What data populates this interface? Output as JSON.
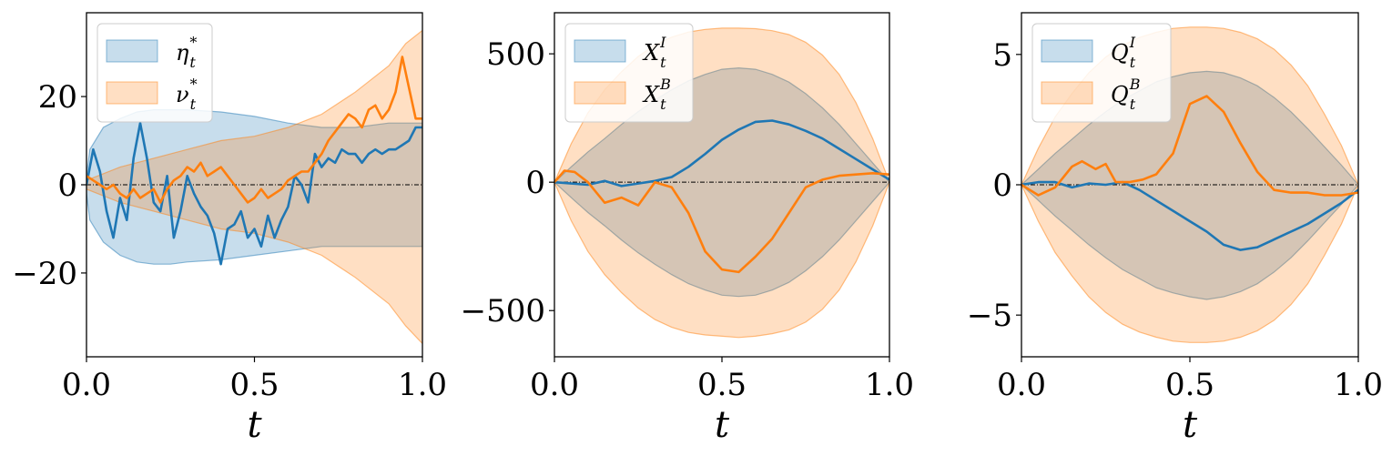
{
  "chart_data": [
    {
      "type": "area",
      "xlabel": "t",
      "ylabel": "",
      "xlim": [
        0.0,
        1.0
      ],
      "ylim": [
        -39,
        39
      ],
      "xticks": [
        "0.0",
        "0.5",
        "1.0"
      ],
      "yticks": [
        {
          "value": 20,
          "label": "20"
        },
        {
          "value": 0,
          "label": "0"
        },
        {
          "value": -20,
          "label": "−20"
        }
      ],
      "legend": "top-left",
      "zero_line": true,
      "bands": [
        {
          "name": "η",
          "sup": "*",
          "color": "#1f77b4",
          "x": [
            0.0,
            0.01,
            0.05,
            0.1,
            0.15,
            0.2,
            0.25,
            0.3,
            0.4,
            0.5,
            0.6,
            0.7,
            0.8,
            0.9,
            1.0
          ],
          "upper": [
            2,
            8,
            13,
            15,
            16.5,
            17,
            17,
            17,
            16.5,
            15.5,
            14,
            13,
            13,
            14,
            14
          ],
          "lower": [
            -2,
            -8,
            -13,
            -16,
            -17.5,
            -18,
            -18,
            -17.5,
            -17,
            -16,
            -15,
            -14,
            -14,
            -14,
            -14
          ]
        },
        {
          "name": "ν",
          "sup": "*",
          "color": "#ff7f0e",
          "x": [
            0.0,
            0.1,
            0.2,
            0.3,
            0.4,
            0.5,
            0.6,
            0.7,
            0.8,
            0.9,
            0.95,
            1.0
          ],
          "upper": [
            1,
            4,
            6,
            8,
            10,
            11,
            13,
            16,
            21,
            27,
            32,
            35
          ],
          "lower": [
            -1,
            -4,
            -6,
            -8,
            -10,
            -11,
            -13,
            -16,
            -21,
            -27,
            -32,
            -36
          ]
        }
      ],
      "series": [
        {
          "color": "#1f77b4",
          "x": [
            0.0,
            0.02,
            0.04,
            0.06,
            0.08,
            0.1,
            0.12,
            0.14,
            0.16,
            0.18,
            0.2,
            0.22,
            0.24,
            0.26,
            0.28,
            0.3,
            0.32,
            0.34,
            0.36,
            0.38,
            0.4,
            0.42,
            0.44,
            0.46,
            0.48,
            0.5,
            0.52,
            0.54,
            0.56,
            0.58,
            0.6,
            0.62,
            0.64,
            0.66,
            0.68,
            0.7,
            0.72,
            0.74,
            0.76,
            0.78,
            0.8,
            0.82,
            0.84,
            0.86,
            0.88,
            0.9,
            0.92,
            0.94,
            0.96,
            0.98,
            1.0
          ],
          "y": [
            0,
            8,
            3,
            -6,
            -12,
            -3,
            -8,
            6,
            14,
            6,
            -4,
            -6,
            2,
            -12,
            -6,
            2,
            -2,
            -5,
            -7,
            -11,
            -18,
            -10,
            -9,
            -6,
            -12,
            -10,
            -14,
            -7,
            -12,
            -8,
            -5,
            2,
            0,
            -4,
            7,
            4,
            6,
            5,
            8,
            7,
            7,
            5,
            7,
            8,
            7,
            8,
            8,
            9,
            10,
            13,
            13
          ]
        },
        {
          "color": "#ff7f0e",
          "x": [
            0.0,
            0.02,
            0.04,
            0.06,
            0.08,
            0.1,
            0.12,
            0.14,
            0.16,
            0.18,
            0.2,
            0.22,
            0.24,
            0.26,
            0.28,
            0.3,
            0.32,
            0.34,
            0.36,
            0.38,
            0.4,
            0.42,
            0.44,
            0.46,
            0.48,
            0.5,
            0.52,
            0.54,
            0.56,
            0.58,
            0.6,
            0.62,
            0.64,
            0.66,
            0.68,
            0.7,
            0.72,
            0.74,
            0.76,
            0.78,
            0.8,
            0.82,
            0.84,
            0.86,
            0.88,
            0.9,
            0.92,
            0.94,
            0.96,
            0.98,
            1.0
          ],
          "y": [
            2,
            1,
            0,
            -1,
            0,
            -2,
            -3,
            -1,
            -3,
            -2,
            -1,
            -4,
            -1,
            1,
            2,
            4,
            3,
            5,
            2,
            3,
            4,
            2,
            0,
            -2,
            -4,
            -3,
            -1,
            -3,
            -2,
            -1,
            1,
            2,
            3,
            3,
            5,
            7,
            10,
            12,
            14,
            16,
            15,
            13,
            17,
            18,
            15,
            17,
            21,
            29,
            22,
            15,
            15
          ]
        }
      ]
    },
    {
      "type": "area",
      "xlabel": "t",
      "ylabel": "",
      "xlim": [
        0.0,
        1.0
      ],
      "ylim": [
        -680,
        660
      ],
      "xticks": [
        "0.0",
        "0.5",
        "1.0"
      ],
      "yticks": [
        {
          "value": 500,
          "label": "500"
        },
        {
          "value": 0,
          "label": "0"
        },
        {
          "value": -500,
          "label": "−500"
        }
      ],
      "legend": "top-left",
      "zero_line": true,
      "bands": [
        {
          "name": "X",
          "sup": "I",
          "color": "#1f77b4",
          "x": [
            0.0,
            0.05,
            0.1,
            0.15,
            0.2,
            0.25,
            0.3,
            0.35,
            0.4,
            0.45,
            0.5,
            0.55,
            0.6,
            0.65,
            0.7,
            0.75,
            0.8,
            0.85,
            0.9,
            0.95,
            1.0
          ],
          "upper": [
            0,
            60,
            118,
            170,
            225,
            275,
            320,
            360,
            395,
            420,
            440,
            445,
            440,
            420,
            390,
            345,
            290,
            225,
            150,
            75,
            0
          ],
          "lower": [
            0,
            -60,
            -118,
            -170,
            -225,
            -275,
            -320,
            -360,
            -395,
            -420,
            -440,
            -445,
            -440,
            -420,
            -390,
            -345,
            -290,
            -225,
            -150,
            -75,
            0
          ]
        },
        {
          "name": "X",
          "sup": "B",
          "color": "#ff7f0e",
          "x": [
            0.0,
            0.05,
            0.1,
            0.15,
            0.2,
            0.25,
            0.3,
            0.35,
            0.4,
            0.45,
            0.5,
            0.55,
            0.6,
            0.65,
            0.7,
            0.75,
            0.8,
            0.85,
            0.9,
            0.95,
            1.0
          ],
          "upper": [
            0,
            150,
            270,
            360,
            430,
            490,
            535,
            565,
            585,
            595,
            600,
            600,
            598,
            590,
            575,
            545,
            495,
            420,
            310,
            170,
            0
          ],
          "lower": [
            0,
            -150,
            -270,
            -360,
            -430,
            -490,
            -535,
            -565,
            -585,
            -595,
            -600,
            -605,
            -600,
            -590,
            -575,
            -545,
            -495,
            -420,
            -310,
            -170,
            0
          ]
        }
      ],
      "series": [
        {
          "color": "#1f77b4",
          "x": [
            0.0,
            0.05,
            0.1,
            0.15,
            0.2,
            0.25,
            0.3,
            0.35,
            0.4,
            0.45,
            0.5,
            0.55,
            0.6,
            0.65,
            0.7,
            0.75,
            0.8,
            0.85,
            0.9,
            0.95,
            1.0
          ],
          "y": [
            0,
            -5,
            -10,
            5,
            -15,
            -5,
            5,
            20,
            60,
            110,
            165,
            205,
            235,
            240,
            225,
            200,
            170,
            130,
            90,
            50,
            10
          ]
        },
        {
          "color": "#ff7f0e",
          "x": [
            0.0,
            0.03,
            0.06,
            0.1,
            0.15,
            0.2,
            0.25,
            0.3,
            0.35,
            0.4,
            0.45,
            0.5,
            0.55,
            0.6,
            0.65,
            0.7,
            0.75,
            0.8,
            0.85,
            0.9,
            0.95,
            1.0
          ],
          "y": [
            0,
            45,
            40,
            0,
            -80,
            -60,
            -90,
            0,
            -20,
            -120,
            -270,
            -340,
            -350,
            -290,
            -220,
            -120,
            -20,
            10,
            25,
            30,
            35,
            30
          ]
        }
      ]
    },
    {
      "type": "area",
      "xlabel": "t",
      "ylabel": "",
      "xlim": [
        0.0,
        1.0
      ],
      "ylim": [
        -6.6,
        6.6
      ],
      "xticks": [
        "0.0",
        "0.5",
        "1.0"
      ],
      "yticks": [
        {
          "value": 5,
          "label": "5"
        },
        {
          "value": 0,
          "label": "0"
        },
        {
          "value": -5,
          "label": "−5"
        }
      ],
      "legend": "top-left",
      "zero_line": true,
      "bands": [
        {
          "name": "Q",
          "sup": "I",
          "color": "#1f77b4",
          "x": [
            0.0,
            0.05,
            0.1,
            0.15,
            0.2,
            0.25,
            0.3,
            0.35,
            0.4,
            0.45,
            0.5,
            0.55,
            0.6,
            0.65,
            0.7,
            0.75,
            0.8,
            0.85,
            0.9,
            0.95,
            1.0
          ],
          "upper": [
            0,
            0.6,
            1.2,
            1.75,
            2.3,
            2.8,
            3.25,
            3.6,
            3.95,
            4.15,
            4.3,
            4.35,
            4.3,
            4.1,
            3.8,
            3.35,
            2.8,
            2.15,
            1.45,
            0.75,
            0
          ],
          "lower": [
            0,
            -0.6,
            -1.2,
            -1.75,
            -2.3,
            -2.8,
            -3.25,
            -3.6,
            -3.95,
            -4.15,
            -4.3,
            -4.4,
            -4.3,
            -4.1,
            -3.8,
            -3.35,
            -2.8,
            -2.15,
            -1.45,
            -0.75,
            0
          ]
        },
        {
          "name": "Q",
          "sup": "B",
          "color": "#ff7f0e",
          "x": [
            0.0,
            0.05,
            0.1,
            0.15,
            0.2,
            0.25,
            0.3,
            0.35,
            0.4,
            0.45,
            0.5,
            0.55,
            0.6,
            0.65,
            0.7,
            0.75,
            0.8,
            0.85,
            0.9,
            0.95,
            1.0
          ],
          "upper": [
            0,
            1.4,
            2.6,
            3.5,
            4.3,
            4.9,
            5.35,
            5.65,
            5.85,
            6.0,
            6.05,
            6.05,
            6.0,
            5.85,
            5.6,
            5.2,
            4.6,
            3.8,
            2.7,
            1.5,
            0
          ],
          "lower": [
            0,
            -1.4,
            -2.6,
            -3.5,
            -4.3,
            -4.9,
            -5.35,
            -5.65,
            -5.85,
            -6.0,
            -6.05,
            -6.05,
            -6.0,
            -5.85,
            -5.6,
            -5.2,
            -4.6,
            -3.8,
            -2.7,
            -1.5,
            0
          ]
        }
      ],
      "series": [
        {
          "color": "#1f77b4",
          "x": [
            0.0,
            0.05,
            0.1,
            0.15,
            0.2,
            0.25,
            0.3,
            0.35,
            0.4,
            0.45,
            0.5,
            0.55,
            0.6,
            0.65,
            0.7,
            0.75,
            0.8,
            0.85,
            0.9,
            0.95,
            1.0
          ],
          "y": [
            0,
            0.1,
            0.1,
            -0.1,
            0.05,
            0,
            0.1,
            -0.2,
            -0.6,
            -1.0,
            -1.4,
            -1.8,
            -2.3,
            -2.5,
            -2.4,
            -2.1,
            -1.8,
            -1.5,
            -1.1,
            -0.7,
            -0.2
          ]
        },
        {
          "color": "#ff7f0e",
          "x": [
            0.0,
            0.05,
            0.1,
            0.15,
            0.18,
            0.22,
            0.25,
            0.28,
            0.32,
            0.36,
            0.4,
            0.45,
            0.5,
            0.55,
            0.6,
            0.65,
            0.7,
            0.75,
            0.8,
            0.85,
            0.9,
            0.95,
            1.0
          ],
          "y": [
            0,
            -0.4,
            -0.1,
            0.7,
            0.9,
            0.6,
            0.8,
            0.1,
            0.1,
            0.2,
            0.4,
            1.2,
            3.1,
            3.4,
            2.8,
            1.6,
            0.5,
            -0.2,
            -0.3,
            -0.3,
            -0.4,
            -0.4,
            -0.3
          ]
        }
      ]
    }
  ]
}
